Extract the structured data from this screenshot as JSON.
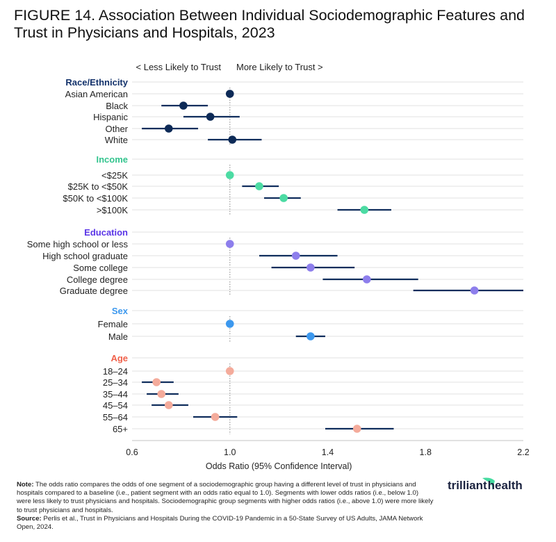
{
  "title": "FIGURE 14. Association Between Individual Sociodemographic Features and Trust in Physicians and Hospitals, 2023",
  "direction_labels": {
    "left": "< Less Likely to Trust",
    "right": "More Likely to Trust >"
  },
  "note": {
    "note_label": "Note:",
    "note_text": "The odds ratio compares the odds of one segment of a sociodemographic group having a different level of trust in physicians and hospitals compared to a baseline (i.e., patient segment with an odds ratio equal to 1.0). Segments with lower odds ratios (i.e., below 1.0) were less likely to trust physicians and hospitals. Sociodemographic group segments with higher odds ratios (i.e., above 1.0) were more likely to trust physicians and hospitals.",
    "source_label": "Source:",
    "source_text": "Perlis et al., Trust in Physicians and Hospitals During the COVID-19 Pandemic in a 50-State Survey of US Adults, JAMA Network Open, 2024."
  },
  "logo": {
    "text": "trilliant health"
  },
  "colors": {
    "ci_line": "#0f2d5c",
    "grid": "#e6e6e6",
    "reference_line": "#999999"
  },
  "chart_data": {
    "type": "forest",
    "xlabel": "Odds Ratio (95% Confidence Interval)",
    "xlim": [
      0.6,
      2.2
    ],
    "xticks": [
      "0.6",
      "1.0",
      "1.4",
      "1.8",
      "2.2"
    ],
    "reference_value": 1.0,
    "grid": true,
    "groups": [
      {
        "name": "Race/Ethnicity",
        "header_color": "#13326b",
        "marker_color": "#0d2a57",
        "rows": [
          {
            "label": "Asian American",
            "or": 1.0,
            "lo": null,
            "hi": null
          },
          {
            "label": "Black",
            "or": 0.81,
            "lo": 0.72,
            "hi": 0.91
          },
          {
            "label": "Hispanic",
            "or": 0.92,
            "lo": 0.81,
            "hi": 1.04
          },
          {
            "label": "Other",
            "or": 0.75,
            "lo": 0.64,
            "hi": 0.87
          },
          {
            "label": "White",
            "or": 1.01,
            "lo": 0.91,
            "hi": 1.13
          }
        ]
      },
      {
        "name": "Income",
        "header_color": "#33c48e",
        "marker_color": "#4cdba3",
        "rows": [
          {
            "label": "<$25K",
            "or": 1.0,
            "lo": null,
            "hi": null
          },
          {
            "label": "$25K to <$50K",
            "or": 1.12,
            "lo": 1.05,
            "hi": 1.2
          },
          {
            "label": "$50K to <$100K",
            "or": 1.22,
            "lo": 1.14,
            "hi": 1.29
          },
          {
            "label": ">$100K",
            "or": 1.55,
            "lo": 1.44,
            "hi": 1.66
          }
        ]
      },
      {
        "name": "Education",
        "header_color": "#5a35e6",
        "marker_color": "#8d7eec",
        "rows": [
          {
            "label": "Some high school or less",
            "or": 1.0,
            "lo": null,
            "hi": null
          },
          {
            "label": "High school graduate",
            "or": 1.27,
            "lo": 1.12,
            "hi": 1.44
          },
          {
            "label": "Some college",
            "or": 1.33,
            "lo": 1.17,
            "hi": 1.51
          },
          {
            "label": "College degree",
            "or": 1.56,
            "lo": 1.38,
            "hi": 1.77
          },
          {
            "label": "Graduate degree",
            "or": 2.0,
            "lo": 1.75,
            "hi": 2.2
          }
        ]
      },
      {
        "name": "Sex",
        "header_color": "#3c98ee",
        "marker_color": "#3c98ee",
        "rows": [
          {
            "label": "Female",
            "or": 1.0,
            "lo": null,
            "hi": null
          },
          {
            "label": "Male",
            "or": 1.33,
            "lo": 1.27,
            "hi": 1.39
          }
        ]
      },
      {
        "name": "Age",
        "header_color": "#f0614a",
        "marker_color": "#f4ab9b",
        "rows": [
          {
            "label": "18–24",
            "or": 1.0,
            "lo": null,
            "hi": null
          },
          {
            "label": "25–34",
            "or": 0.7,
            "lo": 0.64,
            "hi": 0.77
          },
          {
            "label": "35–44",
            "or": 0.72,
            "lo": 0.66,
            "hi": 0.79
          },
          {
            "label": "45–54",
            "or": 0.75,
            "lo": 0.68,
            "hi": 0.83
          },
          {
            "label": "55–64",
            "or": 0.94,
            "lo": 0.85,
            "hi": 1.03
          },
          {
            "label": "65+",
            "or": 1.52,
            "lo": 1.39,
            "hi": 1.67
          }
        ]
      }
    ]
  }
}
